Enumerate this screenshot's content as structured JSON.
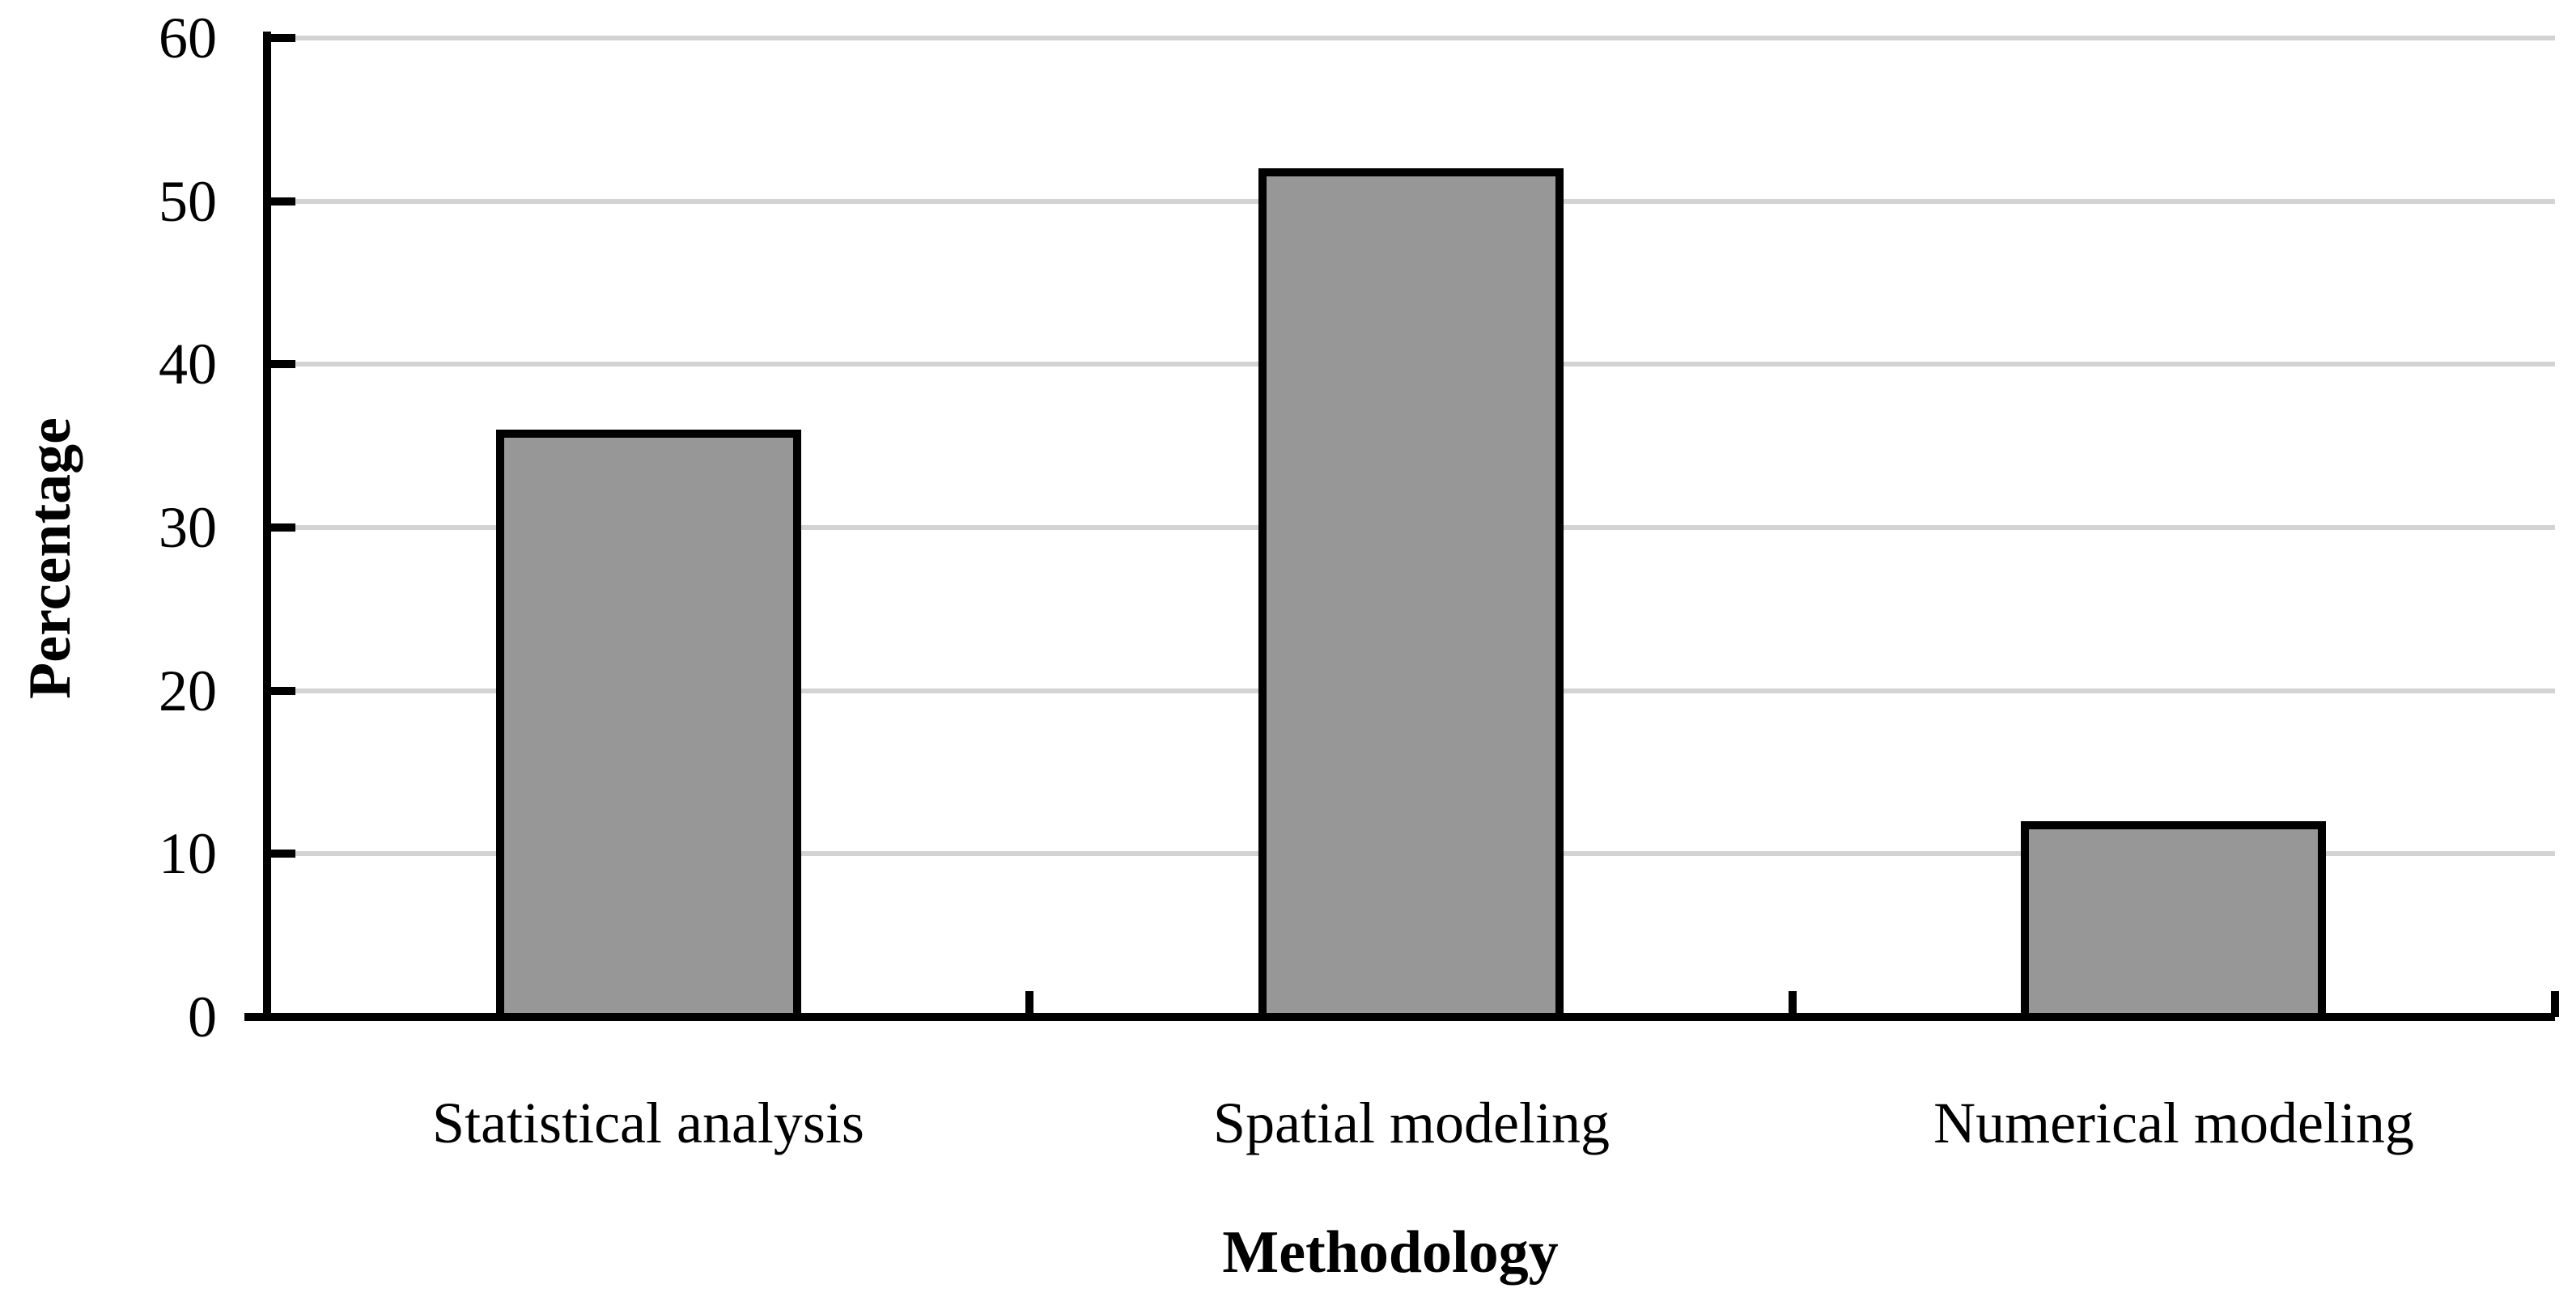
{
  "chart_data": {
    "type": "bar",
    "categories": [
      "Statistical analysis",
      "Spatial modeling",
      "Numerical modeling"
    ],
    "values": [
      36,
      52,
      12
    ],
    "xlabel": "Methodology",
    "ylabel": "Percentage",
    "ylim": [
      0,
      60
    ],
    "y_ticks": [
      0,
      10,
      20,
      30,
      40,
      50,
      60
    ],
    "grid": true,
    "legend": "none",
    "bar_fill_color": "#979797",
    "bar_border_color": "#000000",
    "gridline_color": "#D3D3D3",
    "axis_color": "#000000",
    "text_color": "#000000",
    "background_color": "#FFFFFF",
    "bar_width_fraction": 0.4
  }
}
